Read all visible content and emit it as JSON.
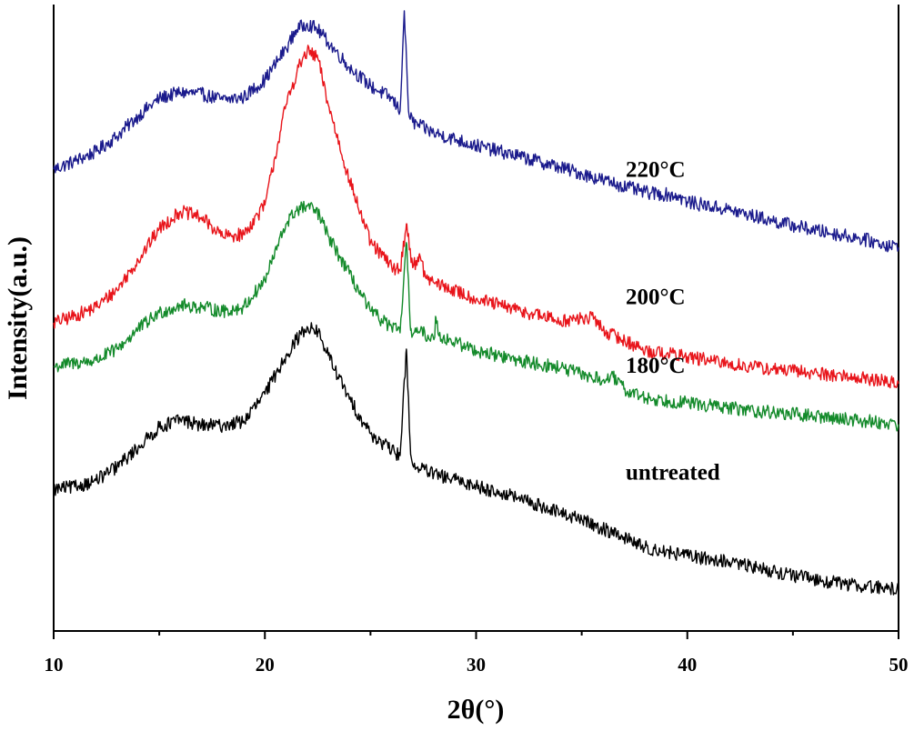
{
  "chart_data": {
    "type": "line",
    "title": "",
    "xlabel": "2θ(°)",
    "ylabel": "Intensity(a.u.)",
    "xlim": [
      10,
      50
    ],
    "ylim": [
      0,
      1
    ],
    "x_ticks": [
      "10",
      "20",
      "30",
      "40",
      "50"
    ],
    "y_ticks_shown": false,
    "grid": false,
    "legend": "none",
    "series_labels_position": "inline-right",
    "series": [
      {
        "name": "220°C",
        "color": "#1a1a8c",
        "label_y": 0.738,
        "points": [
          [
            10,
            0.737
          ],
          [
            11,
            0.75
          ],
          [
            12,
            0.765
          ],
          [
            13,
            0.79
          ],
          [
            14,
            0.822
          ],
          [
            15,
            0.85
          ],
          [
            16,
            0.86
          ],
          [
            17,
            0.857
          ],
          [
            18,
            0.848
          ],
          [
            19,
            0.852
          ],
          [
            20,
            0.88
          ],
          [
            21,
            0.93
          ],
          [
            21.5,
            0.96
          ],
          [
            22,
            0.97
          ],
          [
            22.5,
            0.96
          ],
          [
            23,
            0.94
          ],
          [
            24,
            0.9
          ],
          [
            25,
            0.87
          ],
          [
            26,
            0.85
          ],
          [
            26.4,
            0.83
          ],
          [
            26.6,
            0.99
          ],
          [
            26.8,
            0.83
          ],
          [
            27,
            0.812
          ],
          [
            28,
            0.795
          ],
          [
            30,
            0.775
          ],
          [
            32,
            0.758
          ],
          [
            34,
            0.74
          ],
          [
            36,
            0.72
          ],
          [
            38,
            0.7
          ],
          [
            39.5,
            0.695
          ],
          [
            40,
            0.685
          ],
          [
            42,
            0.672
          ],
          [
            44,
            0.655
          ],
          [
            46,
            0.64
          ],
          [
            48,
            0.628
          ],
          [
            50,
            0.612
          ]
        ]
      },
      {
        "name": "200°C",
        "color": "#e8141a",
        "label_y": 0.535,
        "points": [
          [
            10,
            0.492
          ],
          [
            11,
            0.503
          ],
          [
            12,
            0.517
          ],
          [
            13,
            0.545
          ],
          [
            14,
            0.592
          ],
          [
            15,
            0.642
          ],
          [
            16,
            0.67
          ],
          [
            17,
            0.66
          ],
          [
            18,
            0.63
          ],
          [
            19,
            0.633
          ],
          [
            20,
            0.68
          ],
          [
            21,
            0.84
          ],
          [
            21.6,
            0.9
          ],
          [
            22,
            0.925
          ],
          [
            22.5,
            0.915
          ],
          [
            23,
            0.84
          ],
          [
            24,
            0.72
          ],
          [
            25,
            0.62
          ],
          [
            26,
            0.582
          ],
          [
            26.4,
            0.575
          ],
          [
            26.7,
            0.65
          ],
          [
            27,
            0.58
          ],
          [
            27.3,
            0.6
          ],
          [
            27.6,
            0.565
          ],
          [
            28,
            0.556
          ],
          [
            30,
            0.53
          ],
          [
            32,
            0.512
          ],
          [
            34,
            0.495
          ],
          [
            35.6,
            0.5
          ],
          [
            36,
            0.48
          ],
          [
            38,
            0.448
          ],
          [
            40,
            0.438
          ],
          [
            42,
            0.426
          ],
          [
            44,
            0.418
          ],
          [
            46,
            0.412
          ],
          [
            48,
            0.405
          ],
          [
            50,
            0.395
          ]
        ]
      },
      {
        "name": "180°C",
        "color": "#138a2a",
        "label_y": 0.425,
        "points": [
          [
            10,
            0.422
          ],
          [
            11,
            0.428
          ],
          [
            12,
            0.432
          ],
          [
            13,
            0.45
          ],
          [
            14,
            0.482
          ],
          [
            15,
            0.508
          ],
          [
            16,
            0.52
          ],
          [
            17,
            0.517
          ],
          [
            18,
            0.51
          ],
          [
            19,
            0.517
          ],
          [
            20,
            0.56
          ],
          [
            21,
            0.65
          ],
          [
            21.5,
            0.672
          ],
          [
            22,
            0.678
          ],
          [
            22.5,
            0.668
          ],
          [
            23,
            0.63
          ],
          [
            24,
            0.57
          ],
          [
            25,
            0.51
          ],
          [
            26,
            0.485
          ],
          [
            26.4,
            0.476
          ],
          [
            26.7,
            0.62
          ],
          [
            26.9,
            0.48
          ],
          [
            27.5,
            0.475
          ],
          [
            28,
            0.465
          ],
          [
            28.1,
            0.5
          ],
          [
            28.3,
            0.47
          ],
          [
            30,
            0.448
          ],
          [
            32,
            0.432
          ],
          [
            34,
            0.42
          ],
          [
            36,
            0.4
          ],
          [
            36.5,
            0.405
          ],
          [
            37,
            0.386
          ],
          [
            38,
            0.372
          ],
          [
            40,
            0.364
          ],
          [
            42,
            0.356
          ],
          [
            44,
            0.349
          ],
          [
            46,
            0.343
          ],
          [
            48,
            0.337
          ],
          [
            50,
            0.33
          ]
        ]
      },
      {
        "name": "untreated",
        "color": "#000000",
        "label_y": 0.255,
        "points": [
          [
            10,
            0.226
          ],
          [
            11,
            0.23
          ],
          [
            12,
            0.24
          ],
          [
            13,
            0.262
          ],
          [
            14,
            0.293
          ],
          [
            15,
            0.325
          ],
          [
            16,
            0.338
          ],
          [
            17,
            0.328
          ],
          [
            18,
            0.328
          ],
          [
            19,
            0.335
          ],
          [
            20,
            0.378
          ],
          [
            21,
            0.44
          ],
          [
            21.5,
            0.465
          ],
          [
            22,
            0.486
          ],
          [
            22.5,
            0.478
          ],
          [
            23,
            0.44
          ],
          [
            24,
            0.37
          ],
          [
            25,
            0.315
          ],
          [
            26,
            0.288
          ],
          [
            26.4,
            0.28
          ],
          [
            26.7,
            0.45
          ],
          [
            26.9,
            0.282
          ],
          [
            27,
            0.265
          ],
          [
            28,
            0.25
          ],
          [
            30,
            0.232
          ],
          [
            32,
            0.212
          ],
          [
            34,
            0.188
          ],
          [
            35,
            0.178
          ],
          [
            36,
            0.163
          ],
          [
            37,
            0.15
          ],
          [
            38,
            0.133
          ],
          [
            40,
            0.12
          ],
          [
            42,
            0.11
          ],
          [
            44,
            0.096
          ],
          [
            46,
            0.082
          ],
          [
            48,
            0.073
          ],
          [
            50,
            0.066
          ]
        ]
      }
    ]
  }
}
